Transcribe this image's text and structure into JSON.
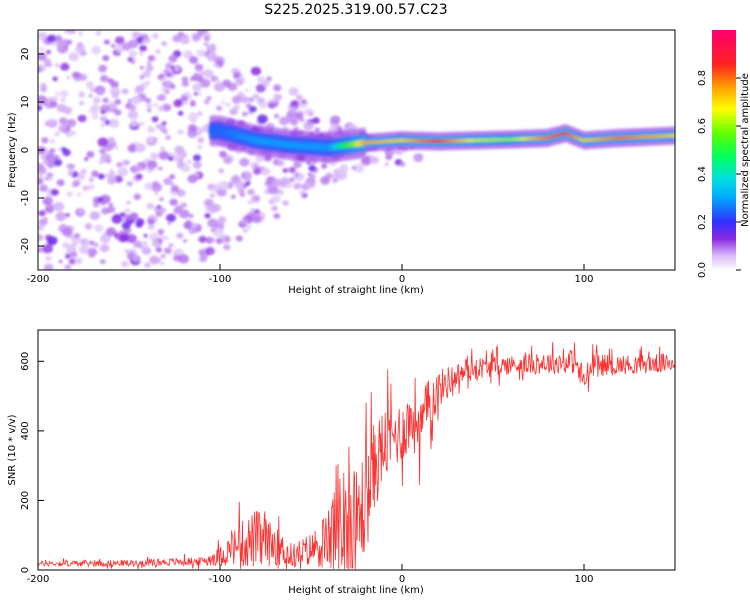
{
  "title": "S225.2025.319.00.57.C23",
  "chart_data": [
    {
      "type": "heatmap",
      "xlabel": "Height of straight line (km)",
      "ylabel": "Frequency (Hz)",
      "xlim": [
        -200,
        150
      ],
      "ylim": [
        -25,
        25
      ],
      "xticks": [
        -200,
        -100,
        0,
        100
      ],
      "yticks": [
        -20,
        -10,
        0,
        10,
        20
      ],
      "colorbar": {
        "label": "Normalized spectral amplitude",
        "range": [
          0,
          1
        ],
        "ticks": [
          "0.0",
          "0.2",
          "0.4",
          "0.6",
          "0.8"
        ]
      },
      "ridge": {
        "description_points_x": [
          -100,
          -80,
          -60,
          -40,
          -20,
          0,
          20,
          40,
          60,
          80,
          90,
          100,
          120,
          150
        ],
        "frequency_hz": [
          4,
          2,
          1,
          0.5,
          1.5,
          2,
          1.8,
          2,
          2.2,
          2.5,
          3.5,
          2,
          2.5,
          3
        ],
        "amplitude": [
          0.25,
          0.3,
          0.3,
          0.3,
          0.75,
          0.7,
          0.85,
          0.65,
          0.6,
          0.8,
          0.85,
          0.7,
          0.8,
          0.7
        ]
      }
    },
    {
      "type": "line",
      "xlabel": "Height of straight line (km)",
      "ylabel": "SNR (10 * v/v)",
      "xlim": [
        -200,
        150
      ],
      "ylim": [
        0,
        690
      ],
      "xticks": [
        -200,
        -100,
        0,
        100
      ],
      "yticks": [
        0,
        200,
        400,
        600
      ],
      "series": [
        {
          "name": "SNR",
          "color": "#ff3030",
          "x": [
            -200,
            -150,
            -110,
            -100,
            -90,
            -80,
            -70,
            -60,
            -50,
            -40,
            -35,
            -30,
            -25,
            -20,
            -15,
            -10,
            -5,
            0,
            5,
            8,
            10,
            15,
            20,
            30,
            40,
            60,
            80,
            95,
            100,
            105,
            120,
            150
          ],
          "mean": [
            18,
            20,
            25,
            40,
            70,
            90,
            70,
            40,
            60,
            90,
            150,
            170,
            130,
            200,
            300,
            360,
            380,
            400,
            430,
            450,
            400,
            480,
            520,
            560,
            580,
            590,
            595,
            600,
            540,
            590,
            590,
            595
          ],
          "amp": [
            10,
            12,
            15,
            35,
            80,
            110,
            70,
            45,
            60,
            110,
            250,
            300,
            220,
            200,
            160,
            140,
            120,
            110,
            120,
            150,
            120,
            100,
            70,
            45,
            40,
            35,
            40,
            45,
            60,
            40,
            35,
            35
          ]
        }
      ]
    }
  ]
}
